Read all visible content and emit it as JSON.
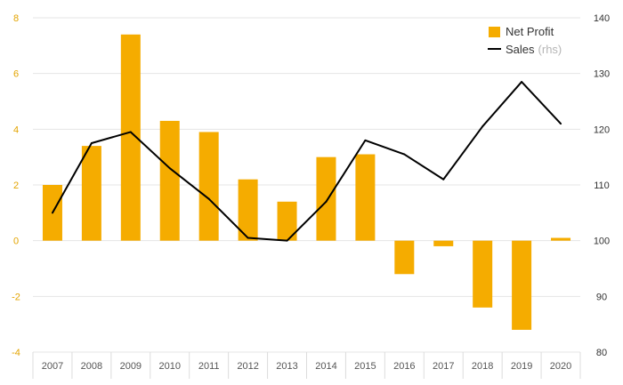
{
  "chart_data": {
    "type": "bar",
    "categories": [
      "2007",
      "2008",
      "2009",
      "2010",
      "2011",
      "2012",
      "2013",
      "2014",
      "2015",
      "2016",
      "2017",
      "2018",
      "2019",
      "2020"
    ],
    "series": [
      {
        "name": "Net Profit",
        "type": "bar",
        "axis": "left",
        "color": "#f5ac00",
        "values": [
          2.0,
          3.4,
          7.4,
          4.3,
          3.9,
          2.2,
          1.4,
          3.0,
          3.1,
          -1.2,
          -0.2,
          -2.4,
          -3.2,
          0.1
        ]
      },
      {
        "name": "Sales",
        "name_suffix": "(rhs)",
        "type": "line",
        "axis": "right",
        "color": "#000000",
        "values": [
          105,
          117.5,
          119.5,
          113,
          107.5,
          100.5,
          100,
          107,
          118,
          115.5,
          111,
          120.5,
          128.5,
          121
        ]
      }
    ],
    "y_left": {
      "min": -4,
      "max": 8,
      "ticks": [
        -4,
        -2,
        0,
        2,
        4,
        6,
        8
      ],
      "color": "#e3a400"
    },
    "y_right": {
      "min": 80,
      "max": 140,
      "ticks": [
        80,
        90,
        100,
        110,
        120,
        130,
        140
      ],
      "color": "#333333"
    },
    "grid": true,
    "legend_position": "top-right",
    "title": "",
    "xlabel": "",
    "ylabel": ""
  }
}
